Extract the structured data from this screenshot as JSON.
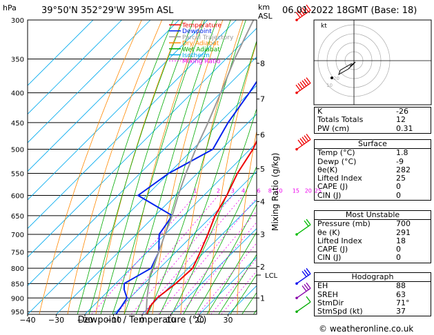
{
  "header": {
    "location": "39°50'N  352°29'W  395m  ASL",
    "date": "06.01.2022  18GMT  (Base: 18)",
    "hpa_label": "hPa",
    "km_label": "km",
    "asl_label": "ASL",
    "kt_label": "kt"
  },
  "chart_data": {
    "type": "line",
    "title": "39°50'N  352°29'W  395m  ASL",
    "xlabel": "Dewpoint / Temperature (°C)",
    "ylabel": "hPa",
    "right_label": "Mixing Ratio (g/kg)",
    "xlim": [
      -40,
      40
    ],
    "ylim": [
      960,
      300
    ],
    "x_ticks": [
      "−40",
      "−30",
      "−20",
      "−10",
      "0",
      "10",
      "20",
      "30"
    ],
    "pressure_levels": [
      300,
      350,
      400,
      450,
      500,
      550,
      600,
      650,
      700,
      750,
      800,
      850,
      900,
      950
    ],
    "km_ticks": [
      {
        "label": "8",
        "p": 356
      },
      {
        "label": "7",
        "p": 410
      },
      {
        "label": "6",
        "p": 472
      },
      {
        "label": "5",
        "p": 540
      },
      {
        "label": "4",
        "p": 615
      },
      {
        "label": "3",
        "p": 700
      },
      {
        "label": "2",
        "p": 795
      },
      {
        "label": "1",
        "p": 900
      }
    ],
    "lcl": {
      "label": "LCL",
      "p": 822
    },
    "mixing_ratio_labels": [
      "1",
      "2",
      "3",
      "4",
      "6",
      "8",
      "10",
      "15",
      "20",
      "25"
    ],
    "mixing_ratios": [
      1,
      2,
      3,
      4,
      6,
      8,
      10,
      15,
      20,
      25
    ],
    "legend": [
      {
        "name": "Temperature",
        "color": "#ee0000"
      },
      {
        "name": "Dewpoint",
        "color": "#0022ee"
      },
      {
        "name": "Parcel Trajectory",
        "color": "#999999"
      },
      {
        "name": "Dry Adiabat",
        "color": "#ff8800"
      },
      {
        "name": "Wet Adiabat",
        "color": "#00aa00"
      },
      {
        "name": "Isotherm",
        "color": "#00aaee"
      },
      {
        "name": "Mixing Ratio",
        "color": "#ee00ee"
      }
    ],
    "series": [
      {
        "name": "Temperature",
        "points": [
          [
            965,
            1.8
          ],
          [
            930,
            0
          ],
          [
            900,
            -0.5
          ],
          [
            850,
            1
          ],
          [
            800,
            1.5
          ],
          [
            750,
            -1.5
          ],
          [
            700,
            -5
          ],
          [
            650,
            -9
          ],
          [
            600,
            -12
          ],
          [
            550,
            -16
          ],
          [
            500,
            -19
          ],
          [
            450,
            -24
          ],
          [
            400,
            -30
          ],
          [
            350,
            -38
          ],
          [
            300,
            -46
          ]
        ]
      },
      {
        "name": "Dewpoint",
        "points": [
          [
            965,
            -9
          ],
          [
            930,
            -10
          ],
          [
            900,
            -11
          ],
          [
            870,
            -15
          ],
          [
            850,
            -17
          ],
          [
            800,
            -13
          ],
          [
            750,
            -16
          ],
          [
            700,
            -22
          ],
          [
            650,
            -24
          ],
          [
            600,
            -43
          ],
          [
            550,
            -40
          ],
          [
            500,
            -33
          ],
          [
            450,
            -37
          ],
          [
            400,
            -40
          ],
          [
            350,
            -44
          ],
          [
            300,
            -50
          ]
        ]
      },
      {
        "name": "Parcel Trajectory",
        "points": [
          [
            965,
            1.8
          ],
          [
            900,
            -4
          ],
          [
            822,
            -11
          ],
          [
            750,
            -16
          ],
          [
            700,
            -20
          ],
          [
            650,
            -24
          ],
          [
            600,
            -29
          ],
          [
            550,
            -34
          ],
          [
            500,
            -39
          ],
          [
            450,
            -44
          ],
          [
            400,
            -50
          ],
          [
            350,
            -57
          ],
          [
            300,
            -64
          ]
        ]
      }
    ],
    "wind_barbs": [
      {
        "p": 300,
        "color": "#ee0000",
        "speed": 55
      },
      {
        "p": 400,
        "color": "#ee0000",
        "speed": 55
      },
      {
        "p": 500,
        "color": "#ee0000",
        "speed": 50
      },
      {
        "p": 700,
        "color": "#00bb00",
        "speed": 15
      },
      {
        "p": 850,
        "color": "#0000ee",
        "speed": 25
      },
      {
        "p": 900,
        "color": "#8800aa",
        "speed": 25
      },
      {
        "p": 950,
        "color": "#00aa00",
        "speed": 10
      }
    ],
    "hodograph": {
      "ring_labels": [
        "10",
        "20"
      ]
    }
  },
  "indices": {
    "rows": [
      {
        "label": "K",
        "value": "-26"
      },
      {
        "label": "Totals Totals",
        "value": "12"
      },
      {
        "label": "PW (cm)",
        "value": "0.31"
      }
    ]
  },
  "surface": {
    "title": "Surface",
    "rows": [
      {
        "label": "Temp (°C)",
        "value": "1.8"
      },
      {
        "label": "Dewp (°C)",
        "value": "-9"
      },
      {
        "label": "θe(K)",
        "value": "282"
      },
      {
        "label": "Lifted Index",
        "value": "25"
      },
      {
        "label": "CAPE (J)",
        "value": "0"
      },
      {
        "label": "CIN (J)",
        "value": "0"
      }
    ]
  },
  "most_unstable": {
    "title": "Most Unstable",
    "rows": [
      {
        "label": "Pressure (mb)",
        "value": "700"
      },
      {
        "label": "θe (K)",
        "value": "291"
      },
      {
        "label": "Lifted Index",
        "value": "18"
      },
      {
        "label": "CAPE (J)",
        "value": "0"
      },
      {
        "label": "CIN (J)",
        "value": "0"
      }
    ]
  },
  "hodograph_table": {
    "title": "Hodograph",
    "rows": [
      {
        "label": "EH",
        "value": "88"
      },
      {
        "label": "SREH",
        "value": "63"
      },
      {
        "label": "StmDir",
        "value": "71°"
      },
      {
        "label": "StmSpd (kt)",
        "value": "37"
      }
    ]
  },
  "footer": {
    "copyright": "© weatheronline.co.uk"
  }
}
